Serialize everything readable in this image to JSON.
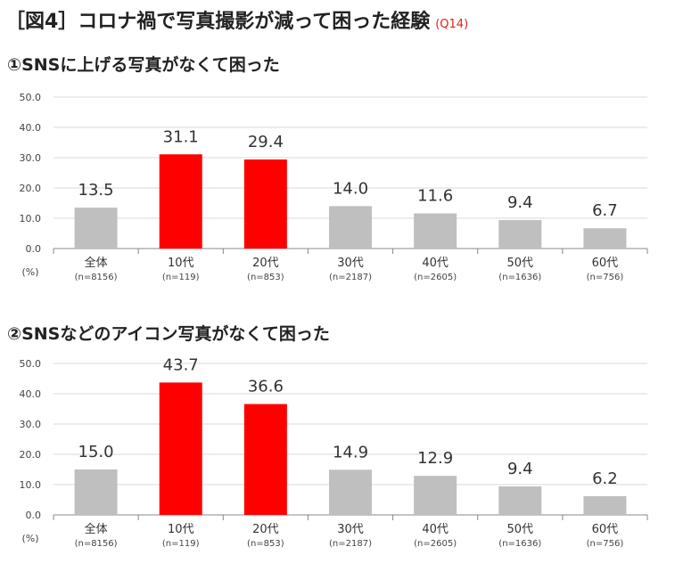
{
  "header": {
    "title": "［図4］コロナ禍で写真撮影が減って困った経験",
    "question_code": "(Q14)"
  },
  "colors": {
    "highlight": "#ff0000",
    "default": "#bfbfbf",
    "grid": "#d9d9d9",
    "axis": "#888888"
  },
  "chart_data": [
    {
      "type": "bar",
      "title": "①SNSに上げる写真がなくて困った",
      "unit_label": "(%)",
      "ylim": [
        0,
        50
      ],
      "yticks": [
        "0.0",
        "10.0",
        "20.0",
        "30.0",
        "40.0",
        "50.0"
      ],
      "categories": [
        "全体",
        "10代",
        "20代",
        "30代",
        "40代",
        "50代",
        "60代"
      ],
      "sample_sizes": [
        "(n=8156)",
        "(n=119)",
        "(n=853)",
        "(n=2187)",
        "(n=2605)",
        "(n=1636)",
        "(n=756)"
      ],
      "values": [
        13.5,
        31.1,
        29.4,
        14.0,
        11.6,
        9.4,
        6.7
      ],
      "value_labels": [
        "13.5",
        "31.1",
        "29.4",
        "14.0",
        "11.6",
        "9.4",
        "6.7"
      ],
      "highlighted": [
        false,
        true,
        true,
        false,
        false,
        false,
        false
      ],
      "grid": true
    },
    {
      "type": "bar",
      "title": "②SNSなどのアイコン写真がなくて困った",
      "unit_label": "(%)",
      "ylim": [
        0,
        50
      ],
      "yticks": [
        "0.0",
        "10.0",
        "20.0",
        "30.0",
        "40.0",
        "50.0"
      ],
      "categories": [
        "全体",
        "10代",
        "20代",
        "30代",
        "40代",
        "50代",
        "60代"
      ],
      "sample_sizes": [
        "(n=8156)",
        "(n=119)",
        "(n=853)",
        "(n=2187)",
        "(n=2605)",
        "(n=1636)",
        "(n=756)"
      ],
      "values": [
        15.0,
        43.7,
        36.6,
        14.9,
        12.9,
        9.4,
        6.2
      ],
      "value_labels": [
        "15.0",
        "43.7",
        "36.6",
        "14.9",
        "12.9",
        "9.4",
        "6.2"
      ],
      "highlighted": [
        false,
        true,
        true,
        false,
        false,
        false,
        false
      ],
      "grid": true
    }
  ]
}
